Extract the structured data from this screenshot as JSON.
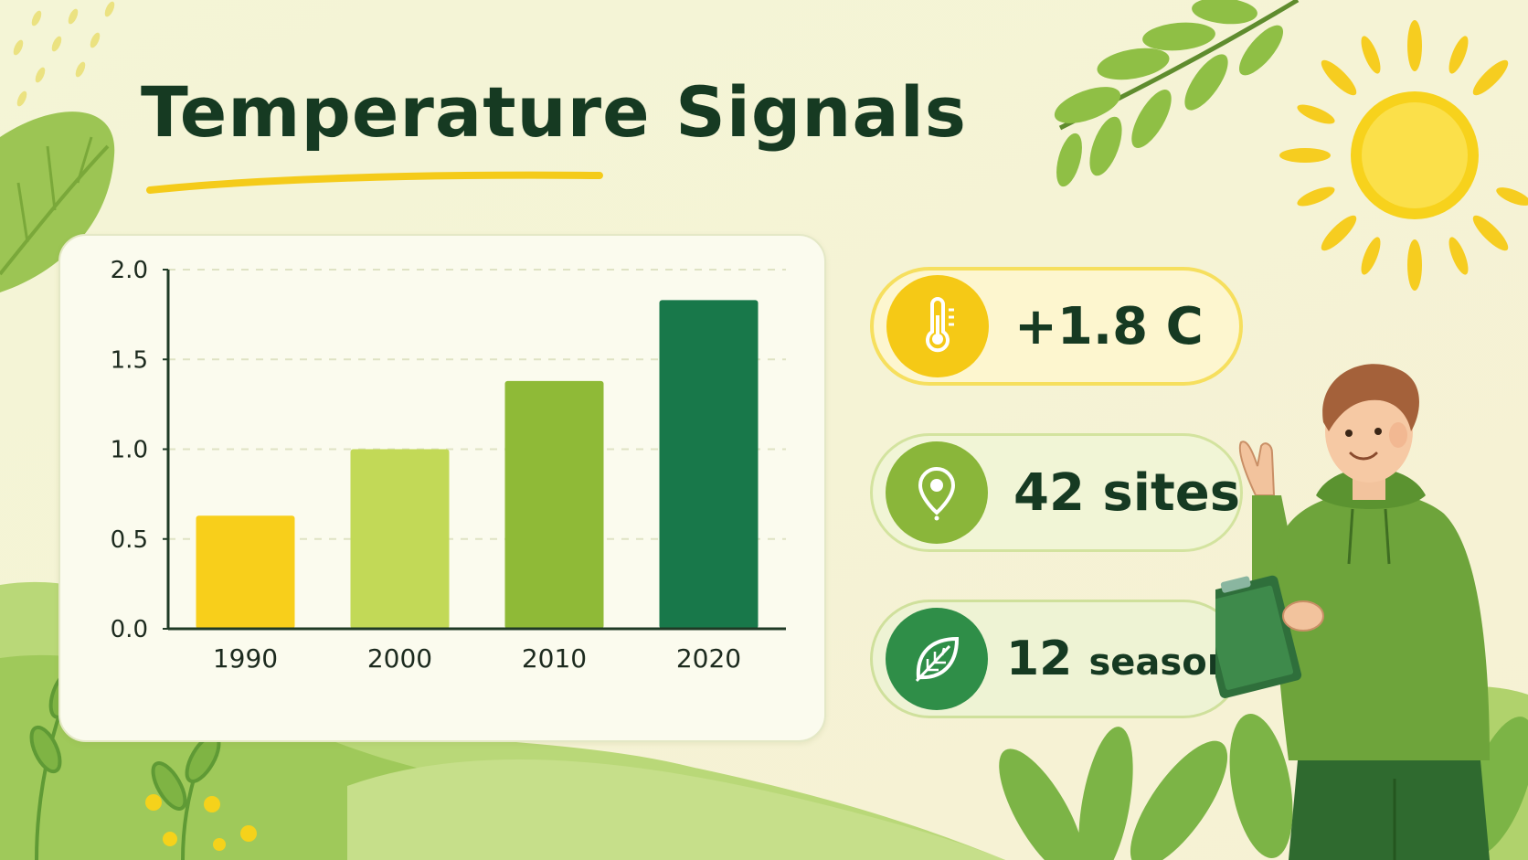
{
  "title": "Temperature Signals",
  "colors": {
    "bar_1990": "#f8cf1b",
    "bar_2000": "#c2d957",
    "bar_2010": "#8fba37",
    "bar_2020": "#18784a",
    "text_dark": "#163a22"
  },
  "chart_data": {
    "type": "bar",
    "categories": [
      "1990",
      "2000",
      "2010",
      "2020"
    ],
    "values": [
      0.63,
      1.0,
      1.38,
      1.83
    ],
    "ylim": [
      0,
      2.0
    ],
    "yticks": [
      "0.0",
      "0.5",
      "1.0",
      "1.5",
      "2.0"
    ],
    "grid": true
  },
  "stats": [
    {
      "icon": "thermometer-icon",
      "value": "+1.8 C"
    },
    {
      "icon": "location-pin-icon",
      "value": "42 sites"
    },
    {
      "icon": "leaf-icon",
      "value_number": "12",
      "value_unit": "seasons"
    }
  ]
}
